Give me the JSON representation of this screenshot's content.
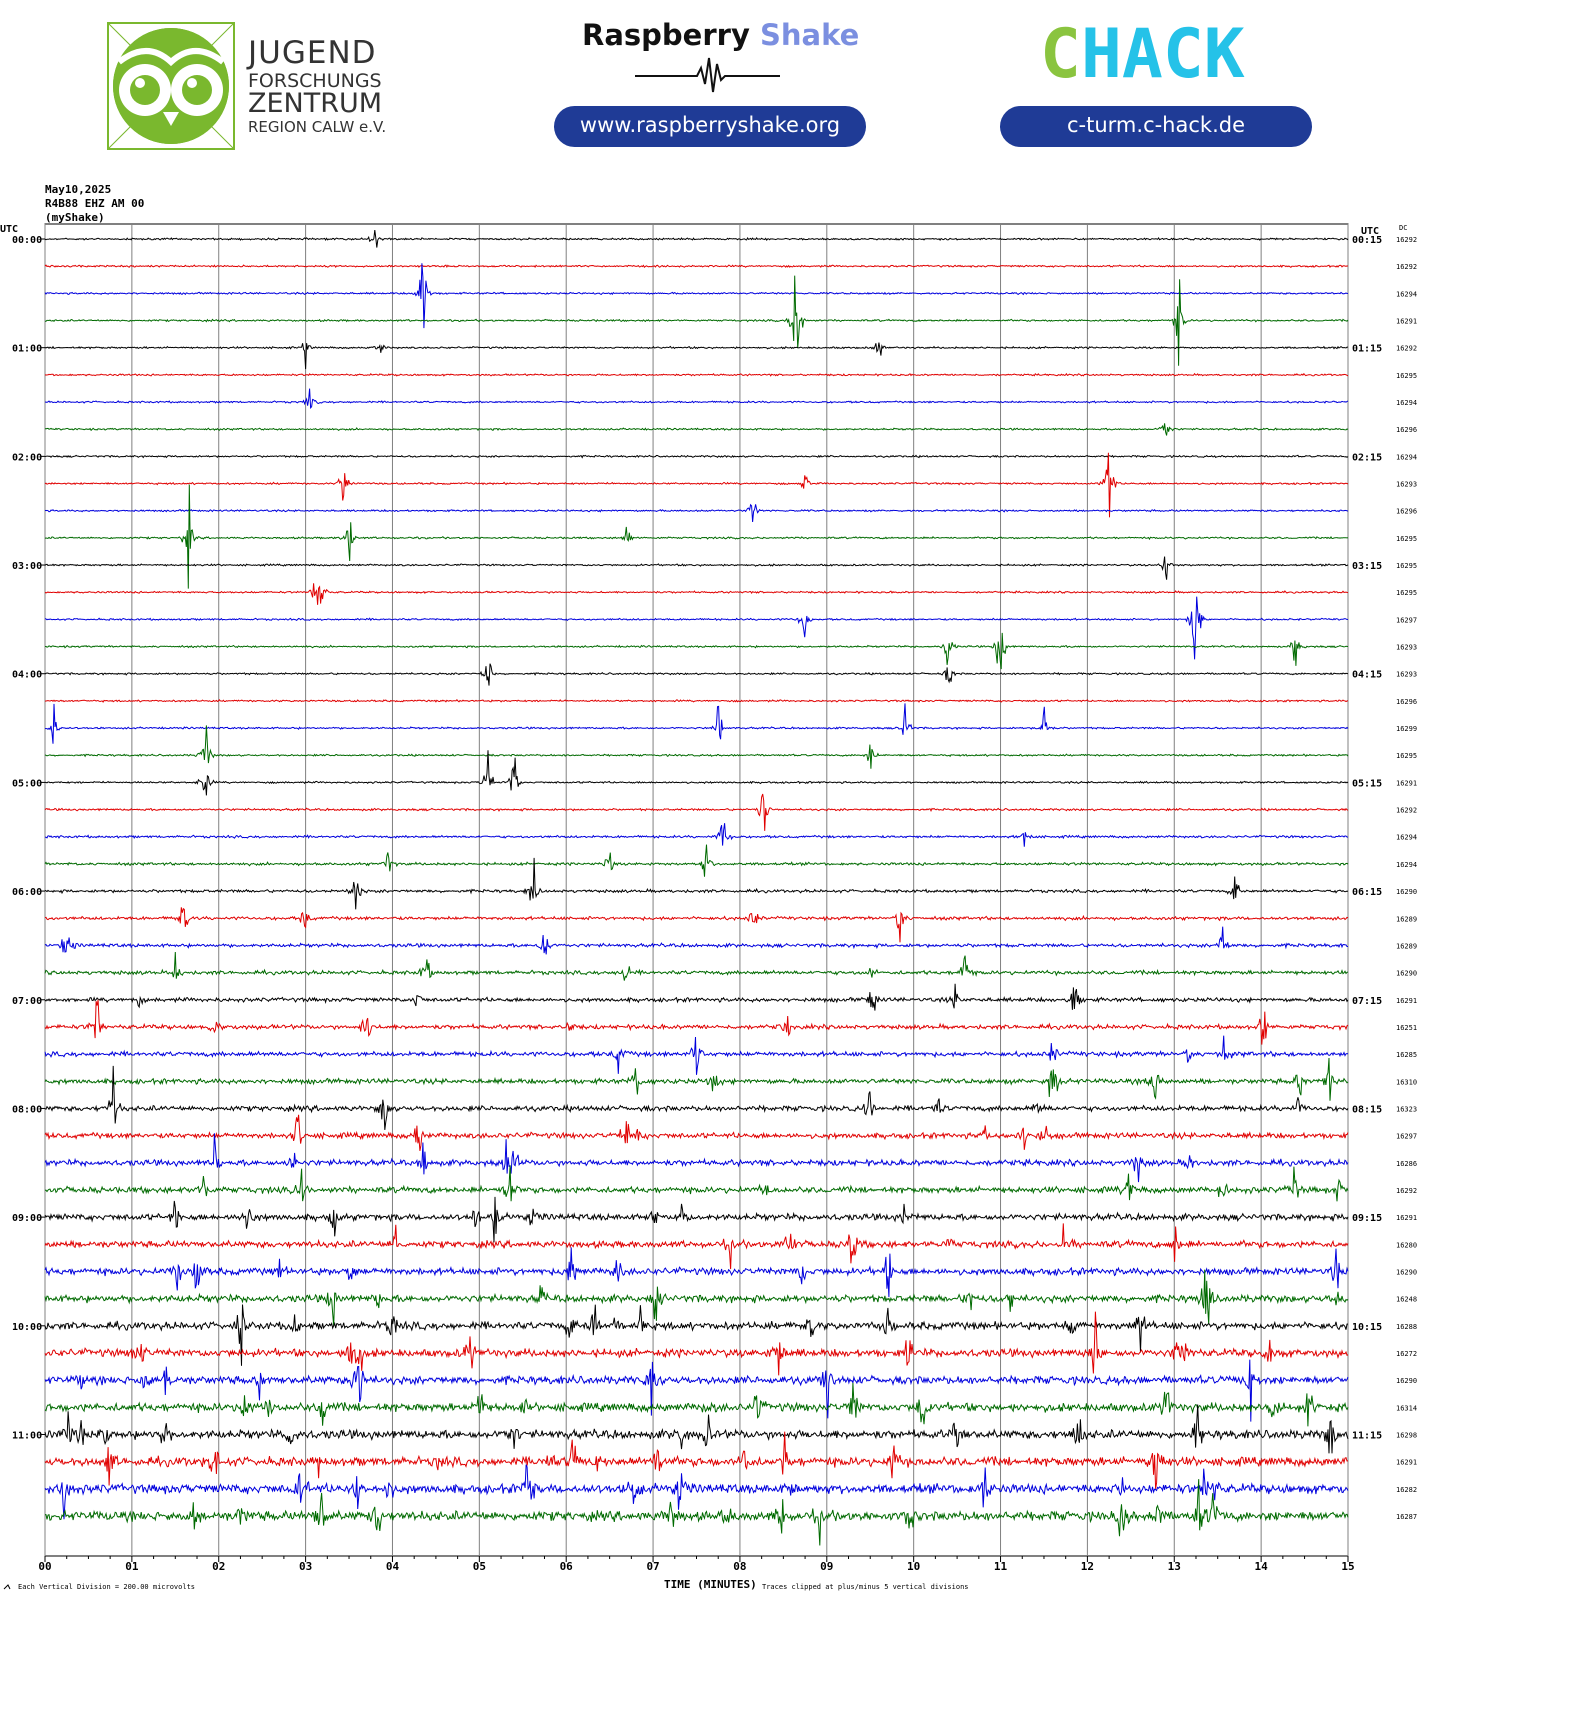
{
  "header": {
    "jfz_logo": {
      "line1": "JUGEND",
      "line2": "FORSCHUNGS",
      "line3": "ZENTRUM",
      "line4": "REGION CALW e.V.",
      "brand_color": "#7ab82e"
    },
    "raspberry": {
      "name_part1": "Raspberry",
      "name_part2": "Shake",
      "url": "www.raspberryshake.org",
      "accent_color": "#7b8fe0"
    },
    "chack": {
      "logo_part1": "C",
      "logo_part2": "HACK",
      "url": "c-turm.c-hack.de",
      "green": "#8ac43f",
      "cyan": "#25c2e8"
    },
    "pill_color": "#1f3b96"
  },
  "chart_data": {
    "type": "line",
    "title_lines": [
      "May10,2025",
      "R4B88 EHZ AM 00",
      "(myShake)"
    ],
    "left_axis_header": "UTC",
    "right_axis_header": "UTC",
    "dc_header": "DC",
    "xlabel": "TIME (MINUTES)",
    "x_ticks": [
      "00",
      "01",
      "02",
      "03",
      "04",
      "05",
      "06",
      "07",
      "08",
      "09",
      "10",
      "11",
      "12",
      "13",
      "14",
      "15"
    ],
    "xlim": [
      0,
      15
    ],
    "footer_left": "Each Vertical Division = 200.00 microvolts",
    "footer_right": "Traces clipped at plus/minus 5 vertical divisions",
    "trace_colors": [
      "#000000",
      "#e00000",
      "#0000dd",
      "#006a00"
    ],
    "left_labels": [
      "00:00",
      "01:00",
      "02:00",
      "03:00",
      "04:00",
      "05:00",
      "06:00",
      "07:00",
      "08:00",
      "09:00",
      "10:00",
      "11:00"
    ],
    "right_labels": [
      "00:15",
      "01:15",
      "02:15",
      "03:15",
      "04:15",
      "05:15",
      "06:15",
      "07:15",
      "08:15",
      "09:15",
      "10:15",
      "11:15"
    ],
    "dc_values": [
      "16292",
      "16292",
      "16294",
      "16291",
      "16292",
      "16295",
      "16294",
      "16296",
      "16294",
      "16293",
      "16296",
      "16295",
      "16295",
      "16295",
      "16297",
      "16293",
      "16293",
      "16296",
      "16299",
      "16295",
      "16291",
      "16292",
      "16294",
      "16294",
      "16290",
      "16289",
      "16289",
      "16290",
      "16291",
      "16251",
      "16285",
      "16310",
      "16323",
      "16297",
      "16286",
      "16292",
      "16291",
      "16280",
      "16290",
      "16248",
      "16288",
      "16272",
      "16290",
      "16314",
      "16298",
      "16291",
      "16282",
      "16287"
    ],
    "events": [
      {
        "trace": 0,
        "minute": 3.8,
        "amp": 0.9
      },
      {
        "trace": 2,
        "minute": 4.35,
        "amp": 3.0
      },
      {
        "trace": 3,
        "minute": 8.65,
        "amp": 4.5
      },
      {
        "trace": 3,
        "minute": 13.05,
        "amp": 2.5
      },
      {
        "trace": 4,
        "minute": 3.0,
        "amp": 0.6
      },
      {
        "trace": 4,
        "minute": 3.85,
        "amp": 0.6
      },
      {
        "trace": 4,
        "minute": 9.6,
        "amp": 0.6
      },
      {
        "trace": 6,
        "minute": 3.05,
        "amp": 0.6
      },
      {
        "trace": 7,
        "minute": 12.9,
        "amp": 0.6
      },
      {
        "trace": 9,
        "minute": 3.45,
        "amp": 1.5
      },
      {
        "trace": 9,
        "minute": 8.75,
        "amp": 0.8
      },
      {
        "trace": 9,
        "minute": 12.25,
        "amp": 2.5
      },
      {
        "trace": 10,
        "minute": 8.15,
        "amp": 0.6
      },
      {
        "trace": 11,
        "minute": 1.65,
        "amp": 2.0
      },
      {
        "trace": 11,
        "minute": 3.5,
        "amp": 1.3
      },
      {
        "trace": 11,
        "minute": 6.7,
        "amp": 0.8
      },
      {
        "trace": 12,
        "minute": 12.9,
        "amp": 0.9
      },
      {
        "trace": 13,
        "minute": 3.15,
        "amp": 3.5
      },
      {
        "trace": 14,
        "minute": 8.75,
        "amp": 1.0
      },
      {
        "trace": 14,
        "minute": 13.25,
        "amp": 3.0
      },
      {
        "trace": 15,
        "minute": 10.4,
        "amp": 1.5
      },
      {
        "trace": 15,
        "minute": 11.0,
        "amp": 2.0
      },
      {
        "trace": 15,
        "minute": 14.4,
        "amp": 1.5
      },
      {
        "trace": 16,
        "minute": 5.1,
        "amp": 1.2
      },
      {
        "trace": 16,
        "minute": 10.4,
        "amp": 0.8
      },
      {
        "trace": 18,
        "minute": 0.1,
        "amp": 1.0
      },
      {
        "trace": 18,
        "minute": 7.75,
        "amp": 1.5
      },
      {
        "trace": 18,
        "minute": 9.9,
        "amp": 1.2
      },
      {
        "trace": 18,
        "minute": 11.5,
        "amp": 1.0
      },
      {
        "trace": 19,
        "minute": 1.85,
        "amp": 2.0
      },
      {
        "trace": 19,
        "minute": 9.5,
        "amp": 0.8
      },
      {
        "trace": 20,
        "minute": 1.85,
        "amp": 1.5
      },
      {
        "trace": 20,
        "minute": 5.1,
        "amp": 1.5
      },
      {
        "trace": 20,
        "minute": 5.4,
        "amp": 1.5
      },
      {
        "trace": 22,
        "minute": 7.8,
        "amp": 1.2
      },
      {
        "trace": 23,
        "minute": 6.5,
        "amp": 1.0
      },
      {
        "trace": 24,
        "minute": 13.7,
        "amp": 0.8
      },
      {
        "trace": 25,
        "minute": 1.6,
        "amp": 1.3
      },
      {
        "trace": 26,
        "minute": 5.75,
        "amp": 1.0
      },
      {
        "trace": 27,
        "minute": 1.5,
        "amp": 1.0
      },
      {
        "trace": 28,
        "minute": 11.85,
        "amp": 1.2
      },
      {
        "trace": 29,
        "minute": 0.6,
        "amp": 1.8
      },
      {
        "trace": 31,
        "minute": 11.6,
        "amp": 1.8
      },
      {
        "trace": 33,
        "minute": 4.3,
        "amp": 1.2
      },
      {
        "trace": 35,
        "minute": 5.35,
        "amp": 1.5
      },
      {
        "trace": 36,
        "minute": 1.5,
        "amp": 0.9
      },
      {
        "trace": 40,
        "minute": 9.7,
        "amp": 0.9
      },
      {
        "trace": 41,
        "minute": 14.1,
        "amp": 1.2
      },
      {
        "trace": 43,
        "minute": 10.1,
        "amp": 1.2
      },
      {
        "trace": 44,
        "minute": 14.8,
        "amp": 1.5
      },
      {
        "trace": 46,
        "minute": 13.45,
        "amp": 1.5
      },
      {
        "trace": 47,
        "minute": 13.45,
        "amp": 1.5
      }
    ]
  }
}
